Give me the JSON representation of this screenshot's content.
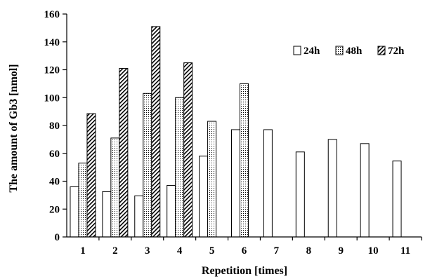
{
  "chart_data": {
    "type": "bar",
    "title": "",
    "xlabel": "Repetition [times]",
    "ylabel": "The amount of Gb3 [nmol]",
    "ylim": [
      0,
      160
    ],
    "yticks": [
      0,
      20,
      40,
      60,
      80,
      100,
      120,
      140,
      160
    ],
    "categories": [
      "1",
      "2",
      "3",
      "4",
      "5",
      "6",
      "7",
      "8",
      "9",
      "10",
      "11"
    ],
    "series": [
      {
        "name": "24h",
        "pattern": "blank",
        "values": [
          36,
          32.5,
          29.5,
          37,
          58,
          77,
          77,
          61,
          70,
          67,
          54.5
        ]
      },
      {
        "name": "48h",
        "pattern": "dots",
        "values": [
          53,
          71,
          103,
          100,
          83,
          110,
          null,
          null,
          null,
          null,
          null
        ]
      },
      {
        "name": "72h",
        "pattern": "hatch",
        "values": [
          88.5,
          121,
          151,
          125,
          null,
          null,
          null,
          null,
          null,
          null,
          null
        ]
      }
    ],
    "legend_position": "top-right",
    "grid": false
  }
}
